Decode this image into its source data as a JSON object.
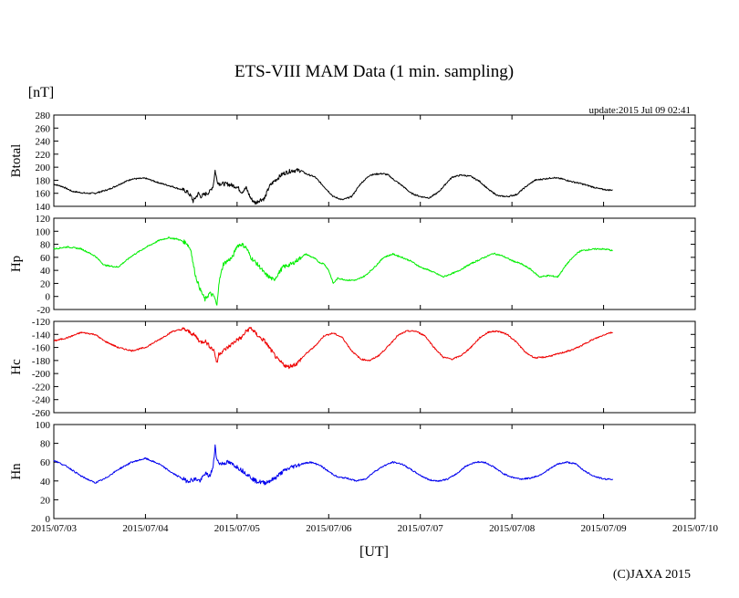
{
  "chart_data": {
    "type": "line",
    "title": "ETS-VIII MAM Data (1 min. sampling)",
    "ylabel_unit": "[nT]",
    "update_text": "update:2015 Jul 09 02:41",
    "xlabel": "[UT]",
    "copyright": "(C)JAXA 2015",
    "x_ticks": [
      "2015/07/03",
      "2015/07/04",
      "2015/07/05",
      "2015/07/06",
      "2015/07/07",
      "2015/07/08",
      "2015/07/09",
      "2015/07/10"
    ],
    "x_range_days": [
      0,
      7
    ],
    "panels": [
      {
        "name": "Btotal",
        "color": "#000000",
        "ylim": [
          140,
          280
        ],
        "yticks": [
          "280",
          "260",
          "240",
          "220",
          "200",
          "180",
          "160",
          "140"
        ],
        "x": [
          0.0,
          0.1,
          0.2,
          0.35,
          0.45,
          0.6,
          0.75,
          0.85,
          1.0,
          1.15,
          1.3,
          1.45,
          1.5,
          1.52,
          1.58,
          1.6,
          1.7,
          1.74,
          1.76,
          1.78,
          1.8,
          1.9,
          2.0,
          2.05,
          2.1,
          2.15,
          2.2,
          2.25,
          2.3,
          2.35,
          2.4,
          2.5,
          2.6,
          2.7,
          2.75,
          2.85,
          2.95,
          3.05,
          3.15,
          3.25,
          3.35,
          3.45,
          3.55,
          3.6,
          3.65,
          3.7,
          3.8,
          3.9,
          4.0,
          4.1,
          4.2,
          4.3,
          4.35,
          4.45,
          4.55,
          4.65,
          4.75,
          4.85,
          4.95,
          5.05,
          5.15,
          5.25,
          5.35,
          5.45,
          5.55,
          5.65,
          5.75,
          5.85,
          5.95,
          6.05,
          6.1
        ],
        "y": [
          174,
          170,
          163,
          160,
          160,
          166,
          176,
          182,
          183,
          176,
          170,
          163,
          155,
          148,
          160,
          155,
          162,
          172,
          195,
          180,
          175,
          174,
          170,
          162,
          168,
          152,
          145,
          150,
          152,
          170,
          178,
          190,
          195,
          195,
          190,
          185,
          170,
          155,
          150,
          155,
          175,
          188,
          190,
          190,
          188,
          182,
          172,
          160,
          155,
          153,
          162,
          178,
          185,
          188,
          186,
          178,
          165,
          156,
          155,
          158,
          170,
          180,
          182,
          184,
          182,
          178,
          175,
          171,
          167,
          165,
          165
        ]
      },
      {
        "name": "Hp",
        "color": "#00ee00",
        "ylim": [
          -20,
          120
        ],
        "yticks": [
          "120",
          "100",
          "80",
          "60",
          "40",
          "20",
          "0",
          "-20"
        ],
        "x": [
          0.0,
          0.15,
          0.3,
          0.45,
          0.55,
          0.7,
          0.85,
          1.0,
          1.15,
          1.25,
          1.35,
          1.45,
          1.5,
          1.52,
          1.55,
          1.6,
          1.65,
          1.7,
          1.75,
          1.78,
          1.8,
          1.85,
          1.95,
          2.0,
          2.05,
          2.1,
          2.15,
          2.25,
          2.3,
          2.35,
          2.4,
          2.5,
          2.6,
          2.75,
          2.85,
          2.9,
          2.95,
          3.0,
          3.05,
          3.1,
          3.2,
          3.3,
          3.4,
          3.5,
          3.6,
          3.7,
          3.8,
          3.9,
          4.0,
          4.1,
          4.25,
          4.4,
          4.55,
          4.7,
          4.8,
          4.9,
          5.0,
          5.1,
          5.2,
          5.3,
          5.4,
          5.5,
          5.6,
          5.7,
          5.75,
          5.85,
          5.95,
          6.05,
          6.1
        ],
        "y": [
          73,
          76,
          73,
          62,
          48,
          45,
          62,
          75,
          86,
          90,
          88,
          82,
          70,
          50,
          30,
          10,
          -5,
          5,
          0,
          -15,
          20,
          50,
          60,
          78,
          80,
          75,
          60,
          45,
          35,
          30,
          25,
          45,
          50,
          65,
          58,
          52,
          50,
          40,
          20,
          28,
          25,
          25,
          32,
          45,
          60,
          65,
          60,
          54,
          45,
          40,
          30,
          38,
          50,
          60,
          66,
          62,
          55,
          50,
          42,
          30,
          32,
          30,
          50,
          65,
          70,
          72,
          73,
          72,
          70
        ]
      },
      {
        "name": "Hc",
        "color": "#ee0000",
        "ylim": [
          -260,
          -120
        ],
        "yticks": [
          "-120",
          "-140",
          "-160",
          "-180",
          "-200",
          "-220",
          "-240",
          "-260"
        ],
        "x": [
          0.0,
          0.15,
          0.3,
          0.45,
          0.55,
          0.7,
          0.85,
          1.0,
          1.15,
          1.3,
          1.42,
          1.5,
          1.55,
          1.6,
          1.65,
          1.7,
          1.75,
          1.78,
          1.8,
          1.9,
          2.0,
          2.05,
          2.1,
          2.15,
          2.2,
          2.25,
          2.3,
          2.35,
          2.45,
          2.55,
          2.65,
          2.75,
          2.85,
          2.95,
          3.05,
          3.15,
          3.25,
          3.35,
          3.45,
          3.55,
          3.65,
          3.75,
          3.85,
          3.95,
          4.05,
          4.15,
          4.25,
          4.35,
          4.45,
          4.55,
          4.65,
          4.75,
          4.85,
          4.95,
          5.05,
          5.15,
          5.25,
          5.35,
          5.45,
          5.55,
          5.65,
          5.75,
          5.85,
          5.95,
          6.05,
          6.1
        ],
        "y": [
          -150,
          -145,
          -137,
          -140,
          -150,
          -160,
          -165,
          -160,
          -148,
          -135,
          -132,
          -138,
          -143,
          -152,
          -150,
          -158,
          -165,
          -185,
          -170,
          -160,
          -148,
          -145,
          -135,
          -130,
          -138,
          -145,
          -150,
          -160,
          -180,
          -190,
          -185,
          -170,
          -158,
          -142,
          -138,
          -145,
          -165,
          -178,
          -180,
          -172,
          -158,
          -142,
          -135,
          -135,
          -142,
          -160,
          -175,
          -178,
          -172,
          -160,
          -145,
          -136,
          -135,
          -140,
          -152,
          -168,
          -176,
          -175,
          -172,
          -168,
          -164,
          -158,
          -150,
          -144,
          -138,
          -137
        ]
      },
      {
        "name": "Hn",
        "color": "#0000ee",
        "ylim": [
          0,
          100
        ],
        "yticks": [
          "100",
          "80",
          "60",
          "40",
          "20",
          "0"
        ],
        "x": [
          0.0,
          0.15,
          0.3,
          0.45,
          0.55,
          0.7,
          0.85,
          1.0,
          1.15,
          1.3,
          1.45,
          1.55,
          1.6,
          1.65,
          1.7,
          1.74,
          1.76,
          1.78,
          1.82,
          1.9,
          2.0,
          2.1,
          2.2,
          2.3,
          2.4,
          2.5,
          2.6,
          2.7,
          2.8,
          2.9,
          3.0,
          3.1,
          3.2,
          3.3,
          3.4,
          3.5,
          3.6,
          3.7,
          3.8,
          3.9,
          4.0,
          4.1,
          4.2,
          4.3,
          4.4,
          4.5,
          4.6,
          4.7,
          4.8,
          4.9,
          5.0,
          5.1,
          5.2,
          5.3,
          5.4,
          5.5,
          5.6,
          5.7,
          5.8,
          5.9,
          6.0,
          6.1
        ],
        "y": [
          62,
          55,
          45,
          38,
          42,
          52,
          60,
          64,
          58,
          48,
          40,
          42,
          40,
          48,
          45,
          55,
          78,
          62,
          58,
          60,
          55,
          48,
          40,
          38,
          42,
          50,
          55,
          58,
          60,
          57,
          50,
          44,
          43,
          40,
          42,
          50,
          56,
          60,
          58,
          52,
          46,
          41,
          40,
          42,
          48,
          56,
          60,
          60,
          55,
          48,
          44,
          42,
          43,
          46,
          52,
          58,
          60,
          58,
          50,
          45,
          42,
          42
        ]
      }
    ]
  }
}
